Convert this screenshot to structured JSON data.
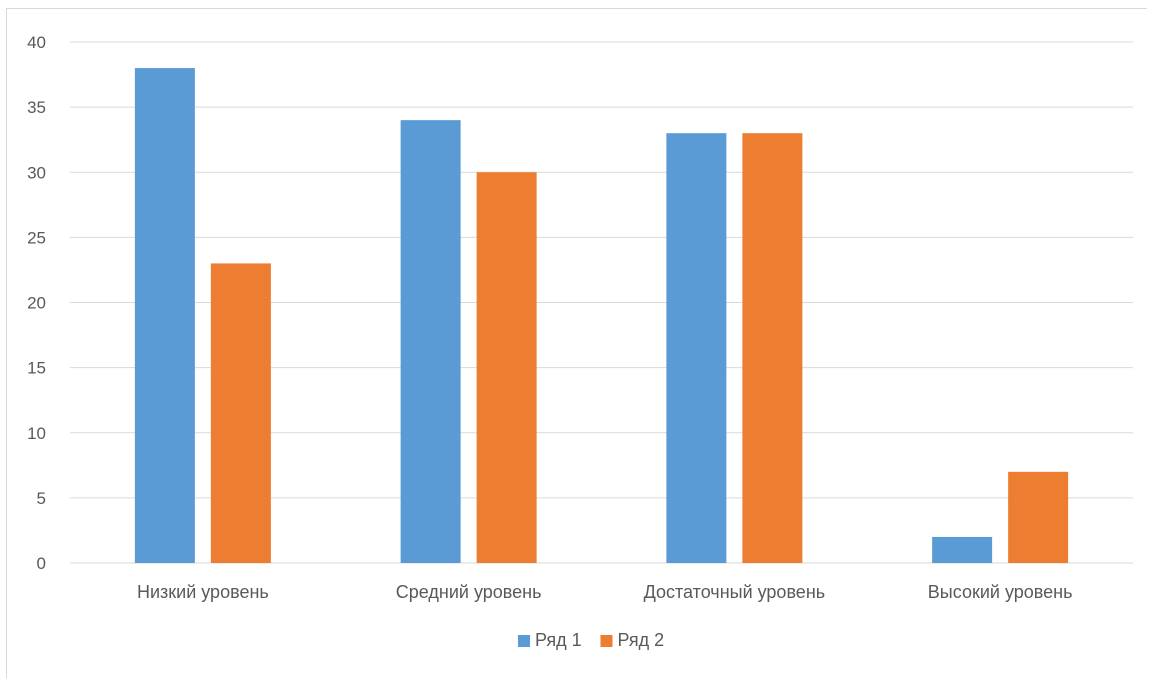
{
  "chart_data": {
    "type": "bar",
    "categories": [
      "Низкий уровень",
      "Средний уровень",
      "Достаточный уровень",
      "Высокий уровень"
    ],
    "series": [
      {
        "name": "Ряд 1",
        "values": [
          38,
          34,
          33,
          2
        ],
        "color": "#5b9bd5"
      },
      {
        "name": "Ряд 2",
        "values": [
          23,
          30,
          33,
          7
        ],
        "color": "#ed7d31"
      }
    ],
    "title": "",
    "xlabel": "",
    "ylabel": "",
    "ylim": [
      0,
      40
    ],
    "yticks": [
      "0",
      "5",
      "10",
      "15",
      "20",
      "25",
      "30",
      "35",
      "40"
    ],
    "grid": true,
    "legend_position": "bottom",
    "gridline_color": "#d9d9d9",
    "text_color": "#595959"
  }
}
